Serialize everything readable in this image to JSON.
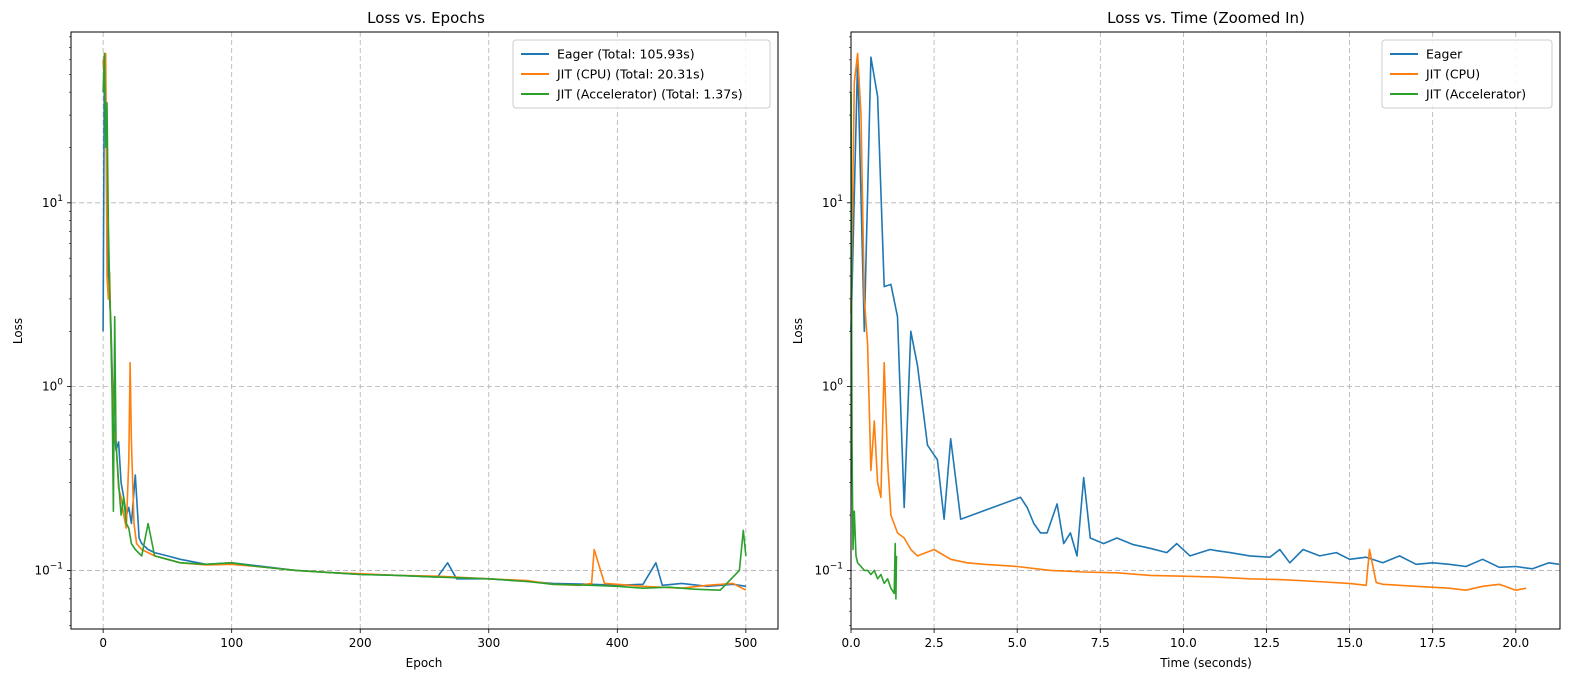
{
  "chart_data": [
    {
      "type": "line",
      "title": "Loss vs. Epochs",
      "xlabel": "Epoch",
      "ylabel": "Loss",
      "xlim": [
        -25,
        525
      ],
      "ylim": [
        0.048,
        85
      ],
      "yscale": "log",
      "grid": true,
      "legend_position": "top-right",
      "xticks": [
        0,
        100,
        200,
        300,
        400,
        500
      ],
      "yticks": [
        0.1,
        1,
        10
      ],
      "series": [
        {
          "name": "Eager (Total: 105.93s)",
          "color": "#1f77b4",
          "x": [
            0,
            1,
            2,
            3,
            4,
            5,
            6,
            8,
            10,
            12,
            14,
            16,
            18,
            20,
            22,
            25,
            28,
            30,
            35,
            40,
            50,
            60,
            80,
            100,
            120,
            150,
            180,
            200,
            230,
            260,
            268,
            275,
            300,
            330,
            350,
            380,
            400,
            420,
            430,
            435,
            450,
            470,
            490,
            500
          ],
          "y": [
            2.0,
            60,
            45,
            8,
            4,
            3,
            2.3,
            0.7,
            0.45,
            0.5,
            0.3,
            0.25,
            0.2,
            0.22,
            0.18,
            0.33,
            0.15,
            0.14,
            0.13,
            0.125,
            0.12,
            0.115,
            0.108,
            0.11,
            0.106,
            0.1,
            0.097,
            0.095,
            0.094,
            0.092,
            0.11,
            0.09,
            0.09,
            0.087,
            0.085,
            0.084,
            0.083,
            0.084,
            0.11,
            0.083,
            0.085,
            0.082,
            0.084,
            0.082
          ]
        },
        {
          "name": "JIT (CPU) (Total: 20.31s)",
          "color": "#ff7f0e",
          "x": [
            0,
            1,
            2,
            3,
            4,
            5,
            6,
            7,
            8,
            10,
            12,
            14,
            16,
            18,
            20,
            21,
            22,
            24,
            26,
            30,
            35,
            40,
            50,
            60,
            80,
            100,
            120,
            150,
            180,
            200,
            230,
            260,
            300,
            330,
            350,
            370,
            380,
            382,
            390,
            400,
            420,
            450,
            470,
            490,
            500
          ],
          "y": [
            60,
            45,
            65,
            4,
            3,
            4.2,
            2.0,
            1.1,
            0.6,
            0.5,
            0.28,
            0.25,
            0.2,
            0.17,
            0.4,
            1.35,
            0.5,
            0.18,
            0.14,
            0.13,
            0.125,
            0.12,
            0.115,
            0.11,
            0.107,
            0.108,
            0.105,
            0.1,
            0.097,
            0.096,
            0.094,
            0.093,
            0.09,
            0.088,
            0.084,
            0.083,
            0.085,
            0.13,
            0.085,
            0.084,
            0.082,
            0.08,
            0.083,
            0.085,
            0.078
          ]
        },
        {
          "name": "JIT (Accelerator) (Total: 1.37s)",
          "color": "#2ca02c",
          "x": [
            0,
            1,
            2,
            3,
            4,
            5,
            6,
            7,
            8,
            9,
            10,
            12,
            14,
            16,
            18,
            20,
            22,
            25,
            30,
            35,
            40,
            50,
            60,
            80,
            100,
            120,
            150,
            180,
            200,
            230,
            260,
            300,
            330,
            350,
            380,
            400,
            420,
            440,
            460,
            480,
            495,
            498,
            500
          ],
          "y": [
            40,
            65,
            20,
            35,
            8,
            3.5,
            2.0,
            0.9,
            0.21,
            2.4,
            0.5,
            0.3,
            0.2,
            0.25,
            0.18,
            0.17,
            0.14,
            0.13,
            0.12,
            0.18,
            0.12,
            0.115,
            0.11,
            0.108,
            0.11,
            0.105,
            0.1,
            0.097,
            0.095,
            0.094,
            0.092,
            0.09,
            0.087,
            0.084,
            0.083,
            0.082,
            0.08,
            0.081,
            0.079,
            0.078,
            0.1,
            0.165,
            0.12
          ]
        }
      ]
    },
    {
      "type": "line",
      "title": "Loss vs. Time (Zoomed In)",
      "xlabel": "Time (seconds)",
      "ylabel": "Loss",
      "xlim": [
        0,
        21.33
      ],
      "ylim": [
        0.048,
        85
      ],
      "yscale": "log",
      "grid": true,
      "legend_position": "top-right",
      "xticks": [
        0.0,
        2.5,
        5.0,
        7.5,
        10.0,
        12.5,
        15.0,
        17.5,
        20.0
      ],
      "xtick_labels": [
        "0.0",
        "2.5",
        "5.0",
        "7.5",
        "10.0",
        "12.5",
        "15.0",
        "17.5",
        "20.0"
      ],
      "yticks": [
        0.1,
        1,
        10
      ],
      "series": [
        {
          "name": "Eager",
          "color": "#1f77b4",
          "x": [
            0.0,
            0.2,
            0.4,
            0.6,
            0.8,
            1.0,
            1.2,
            1.4,
            1.6,
            1.8,
            2.0,
            2.3,
            2.6,
            2.8,
            3.0,
            3.3,
            5.1,
            5.3,
            5.5,
            5.7,
            5.9,
            6.2,
            6.4,
            6.6,
            6.8,
            7.0,
            7.2,
            7.6,
            8.0,
            8.5,
            9.0,
            9.5,
            9.8,
            10.2,
            10.8,
            11.0,
            11.4,
            12.0,
            12.6,
            12.9,
            13.2,
            13.6,
            14.1,
            14.6,
            15.0,
            15.5,
            16.0,
            16.5,
            17.0,
            17.5,
            18.0,
            18.5,
            19.0,
            19.5,
            20.0,
            20.5,
            21.0,
            21.3
          ],
          "y": [
            2.0,
            60,
            2.0,
            62,
            38,
            3.5,
            3.6,
            2.4,
            0.22,
            2.0,
            1.3,
            0.48,
            0.4,
            0.19,
            0.52,
            0.19,
            0.25,
            0.22,
            0.18,
            0.16,
            0.16,
            0.23,
            0.14,
            0.16,
            0.12,
            0.32,
            0.15,
            0.14,
            0.15,
            0.138,
            0.132,
            0.125,
            0.14,
            0.12,
            0.13,
            0.128,
            0.125,
            0.12,
            0.118,
            0.13,
            0.11,
            0.13,
            0.12,
            0.125,
            0.115,
            0.118,
            0.11,
            0.12,
            0.108,
            0.11,
            0.108,
            0.105,
            0.115,
            0.104,
            0.105,
            0.102,
            0.11,
            0.108
          ]
        },
        {
          "name": "JIT (CPU)",
          "color": "#ff7f0e",
          "x": [
            0.0,
            0.1,
            0.2,
            0.3,
            0.4,
            0.5,
            0.6,
            0.7,
            0.8,
            0.9,
            1.0,
            1.1,
            1.2,
            1.4,
            1.6,
            1.8,
            2.0,
            2.5,
            3.0,
            3.5,
            4.0,
            5.0,
            6.0,
            7.0,
            8.0,
            9.0,
            10.0,
            11.0,
            12.0,
            13.0,
            14.0,
            15.0,
            15.5,
            15.6,
            15.8,
            16.0,
            17.0,
            18.0,
            18.5,
            19.0,
            19.5,
            20.0,
            20.31
          ],
          "y": [
            2.5,
            45,
            65,
            30,
            3.0,
            1.7,
            0.35,
            0.65,
            0.3,
            0.25,
            1.35,
            0.4,
            0.2,
            0.16,
            0.15,
            0.13,
            0.12,
            0.13,
            0.115,
            0.11,
            0.108,
            0.105,
            0.1,
            0.098,
            0.097,
            0.094,
            0.093,
            0.092,
            0.09,
            0.089,
            0.087,
            0.085,
            0.083,
            0.13,
            0.086,
            0.084,
            0.082,
            0.08,
            0.078,
            0.082,
            0.084,
            0.078,
            0.08
          ]
        },
        {
          "name": "JIT (Accelerator)",
          "color": "#2ca02c",
          "x": [
            0.0,
            0.03,
            0.06,
            0.1,
            0.15,
            0.2,
            0.3,
            0.4,
            0.5,
            0.6,
            0.7,
            0.8,
            0.9,
            1.0,
            1.1,
            1.2,
            1.3,
            1.33,
            1.35,
            1.37
          ],
          "y": [
            40,
            0.5,
            0.13,
            0.21,
            0.12,
            0.11,
            0.105,
            0.1,
            0.1,
            0.095,
            0.1,
            0.09,
            0.095,
            0.085,
            0.09,
            0.08,
            0.075,
            0.14,
            0.07,
            0.12
          ]
        }
      ]
    }
  ]
}
